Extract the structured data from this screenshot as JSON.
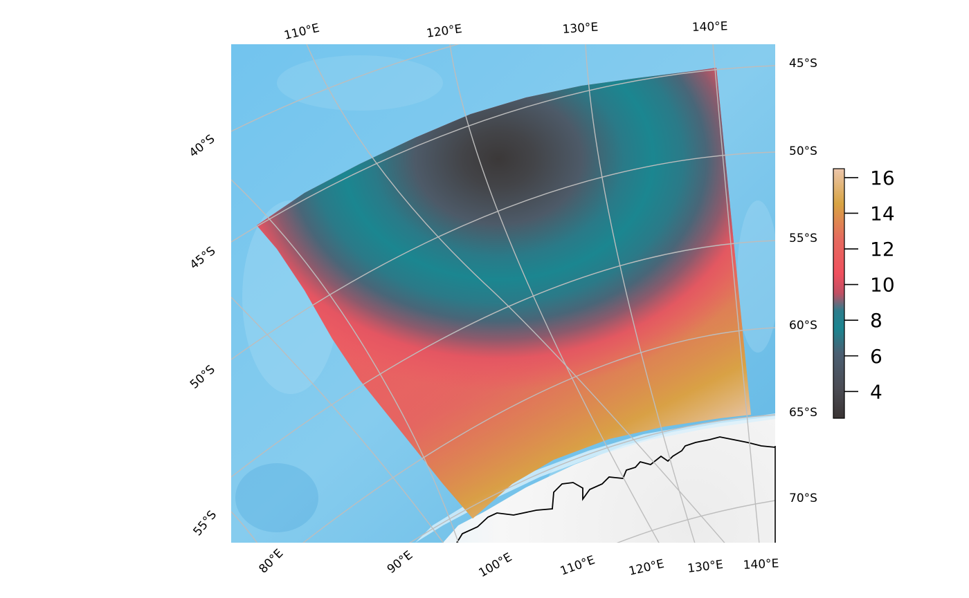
{
  "map": {
    "top_longitude_labels": [
      "110°E",
      "120°E",
      "130°E",
      "140°E"
    ],
    "bottom_longitude_labels": [
      "80°E",
      "90°E",
      "100°E",
      "110°E",
      "120°E",
      "130°E",
      "140°E"
    ],
    "right_latitude_labels": [
      "45°S",
      "50°S",
      "55°S",
      "60°S",
      "65°S",
      "70°S"
    ],
    "left_latitude_labels": [
      "40°S",
      "45°S",
      "50°S",
      "55°S"
    ],
    "colorbar": {
      "ticks": [
        "16",
        "14",
        "12",
        "10",
        "8",
        "6",
        "4"
      ],
      "tick_values": [
        16,
        14,
        12,
        10,
        8,
        6,
        4
      ],
      "range": [
        2.5,
        16.5
      ],
      "palette": [
        "#3a3434",
        "#4c5460",
        "#1b8590",
        "#476a80",
        "#f0505e",
        "#e36760",
        "#d8a443",
        "#e8c4a8"
      ]
    },
    "colors": {
      "ocean": "#6ec2ea",
      "land": "#f2f2f2",
      "graticule": "#bdbdbd",
      "coastline": "#000000"
    }
  }
}
